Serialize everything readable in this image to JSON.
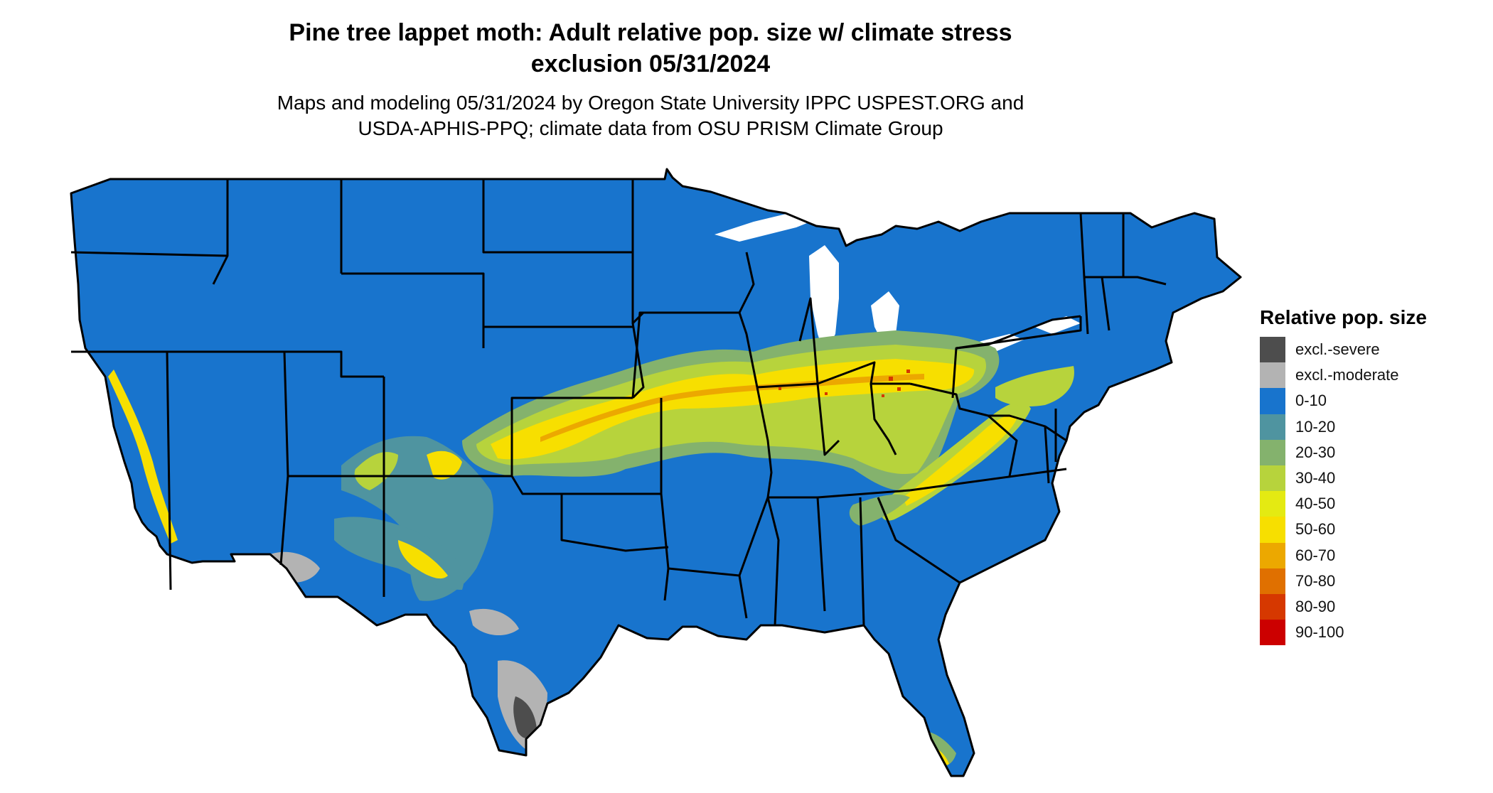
{
  "title_line1": "Pine tree lappet moth: Adult relative pop. size w/ climate stress",
  "title_line2": "exclusion 05/31/2024",
  "subtitle_line1": "Maps and modeling 05/31/2024 by Oregon State University IPPC USPEST.ORG and",
  "subtitle_line2": "USDA-APHIS-PPQ; climate data from OSU PRISM Climate Group",
  "legend": {
    "title": "Relative pop. size",
    "items": [
      {
        "label": "excl.-severe",
        "color": "#4d4d4d"
      },
      {
        "label": "excl.-moderate",
        "color": "#b3b3b3"
      },
      {
        "label": "0-10",
        "color": "#1874cd"
      },
      {
        "label": "10-20",
        "color": "#4f94a0"
      },
      {
        "label": "20-30",
        "color": "#84b26d"
      },
      {
        "label": "30-40",
        "color": "#b7d33c"
      },
      {
        "label": "40-50",
        "color": "#e4ea12"
      },
      {
        "label": "50-60",
        "color": "#f7df00"
      },
      {
        "label": "60-70",
        "color": "#eca800"
      },
      {
        "label": "70-80",
        "color": "#e07000"
      },
      {
        "label": "80-90",
        "color": "#d63800"
      },
      {
        "label": "90-100",
        "color": "#cc0000"
      }
    ]
  },
  "map": {
    "base_color": "#1874cd",
    "border_color": "#000000"
  }
}
